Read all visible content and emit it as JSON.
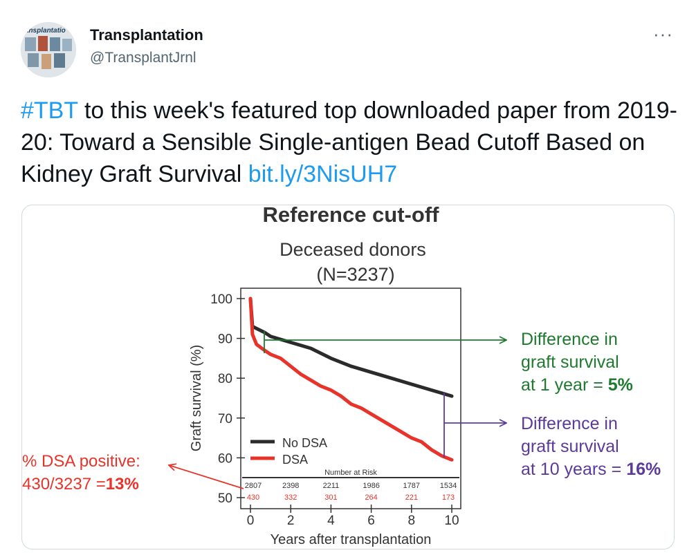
{
  "tweet": {
    "author_name": "Transplantation",
    "author_handle": "@TransplantJrnl",
    "avatar_text": "ransplantatio",
    "more_label": "···",
    "hashtag": "#TBT",
    "text_main": " to this week's featured top downloaded paper from 2019-20: Toward a Sensible Single-antigen Bead Cutoff Based on Kidney Graft Survival ",
    "link_text": "bit.ly/3NisUH7"
  },
  "figure": {
    "title": "Reference cut-off",
    "subtitle_line1": "Deceased donors",
    "subtitle_line2": "(N=3237)",
    "annotation_left": {
      "line1": "% DSA positive:",
      "line2_prefix": "430/3237 =",
      "line2_value": "13%"
    },
    "annotation_1yr": {
      "line1": "Difference in",
      "line2": "graft survival",
      "line3_prefix": "at 1 year = ",
      "value": "5%"
    },
    "annotation_10yr": {
      "line1": "Difference in",
      "line2": "graft survival",
      "line3_prefix": "at 10 years = ",
      "value": "16%"
    },
    "colors": {
      "no_dsa": "#2b2b2b",
      "dsa": "#e8332a",
      "green": "#1e7a2e",
      "purple": "#5b3a9a",
      "red_text": "#e8332a"
    }
  },
  "chart_data": {
    "type": "line",
    "title": "Reference cut-off",
    "xlabel": "Years after transplantation",
    "ylabel": "Graft survival (%)",
    "xlim": [
      0,
      10
    ],
    "ylim": [
      50,
      100
    ],
    "xticks": [
      0,
      2,
      4,
      6,
      8,
      10
    ],
    "yticks": [
      50,
      60,
      70,
      80,
      90,
      100
    ],
    "legend": [
      "No DSA",
      "DSA"
    ],
    "series": [
      {
        "name": "No DSA",
        "x": [
          0,
          0.1,
          0.3,
          0.7,
          1,
          2,
          3,
          4,
          5,
          6,
          7,
          8,
          9,
          10
        ],
        "y": [
          100,
          93,
          92.5,
          91.5,
          90.5,
          89,
          87.5,
          85,
          83,
          81.5,
          80,
          78.5,
          77,
          75.5
        ]
      },
      {
        "name": "DSA",
        "x": [
          0,
          0.1,
          0.3,
          0.7,
          1,
          1.5,
          2,
          2.5,
          3,
          3.5,
          4,
          4.5,
          5,
          5.5,
          6,
          6.5,
          7,
          7.5,
          8,
          8.5,
          9,
          9.5,
          10
        ],
        "y": [
          100,
          91,
          88.5,
          87,
          86,
          85,
          83,
          81,
          79.5,
          78,
          77,
          75.5,
          73.5,
          72.5,
          71,
          69.5,
          68,
          66.5,
          65,
          64,
          62,
          60.5,
          59.5
        ]
      }
    ],
    "risk_table": {
      "title": "Number at Risk",
      "x": [
        0,
        2,
        4,
        6,
        8,
        10
      ],
      "no_dsa": [
        "2807",
        "2398",
        "2211",
        "1986",
        "1787",
        "1534"
      ],
      "dsa": [
        "430",
        "332",
        "301",
        "264",
        "221",
        "173"
      ]
    }
  }
}
